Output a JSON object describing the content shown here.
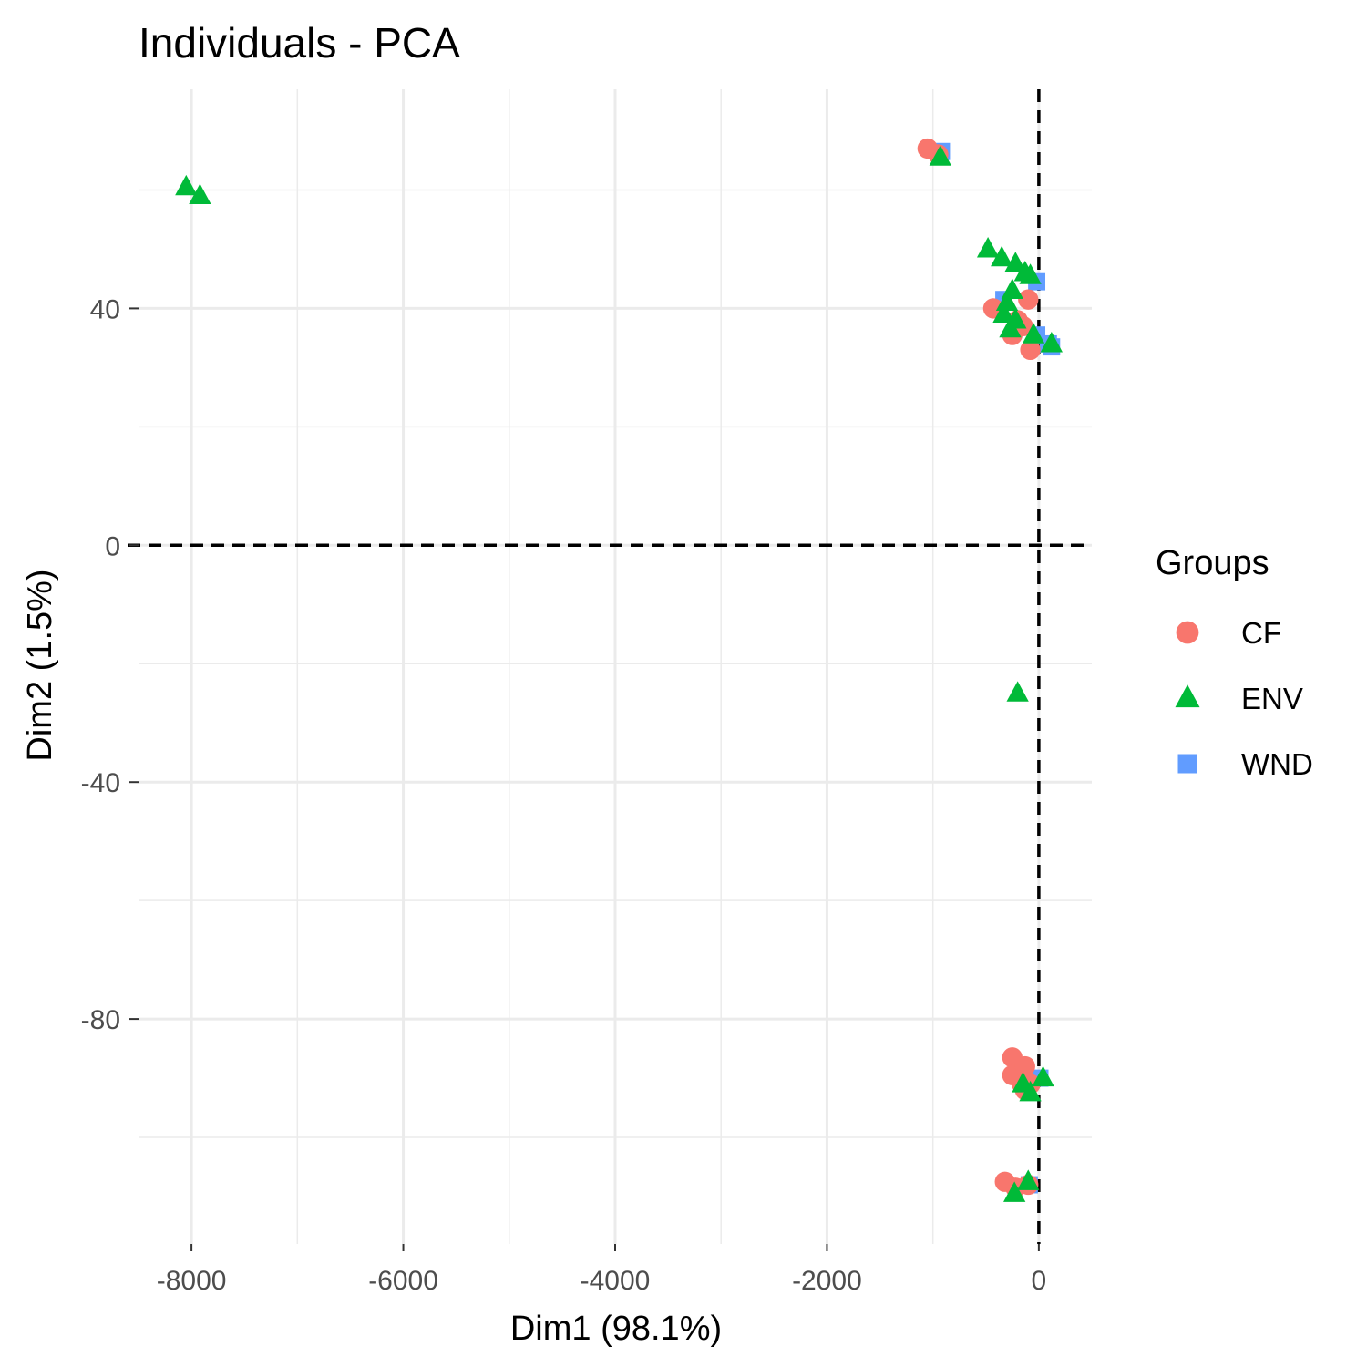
{
  "chart_data": {
    "type": "scatter",
    "title": "Individuals - PCA",
    "xlabel": "Dim1 (98.1%)",
    "ylabel": "Dim2 (1.5%)",
    "xlim": [
      -8500,
      500
    ],
    "ylim": [
      -118,
      77
    ],
    "x_ticks": [
      -8000,
      -6000,
      -4000,
      -2000,
      0
    ],
    "y_ticks": [
      -80,
      -40,
      0,
      40
    ],
    "grid": true,
    "reference_lines": {
      "x": 0,
      "y": 0,
      "style": "dashed"
    },
    "legend": {
      "title": "Groups",
      "position": "right"
    },
    "series": [
      {
        "name": "CF",
        "marker": "circle",
        "color": "#F8766D",
        "points": [
          [
            -1050,
            67
          ],
          [
            -950,
            66
          ],
          [
            -430,
            40
          ],
          [
            -100,
            41.5
          ],
          [
            -150,
            37
          ],
          [
            -80,
            33
          ],
          [
            -200,
            38
          ],
          [
            -250,
            35.5
          ],
          [
            -250,
            -86.5
          ],
          [
            -250,
            -89.5
          ],
          [
            -130,
            -88
          ],
          [
            -80,
            -91
          ],
          [
            -130,
            -92
          ],
          [
            -160,
            -91
          ],
          [
            -320,
            -107.5
          ],
          [
            -220,
            -108.5
          ],
          [
            -100,
            -108
          ]
        ]
      },
      {
        "name": "ENV",
        "marker": "triangle",
        "color": "#00BA38",
        "points": [
          [
            -8050,
            60.5
          ],
          [
            -7920,
            59
          ],
          [
            -930,
            65.5
          ],
          [
            -480,
            50
          ],
          [
            -350,
            48.5
          ],
          [
            -220,
            47.5
          ],
          [
            -130,
            46
          ],
          [
            -80,
            45.5
          ],
          [
            -300,
            41
          ],
          [
            -250,
            43
          ],
          [
            -330,
            39
          ],
          [
            -220,
            38
          ],
          [
            -270,
            36.5
          ],
          [
            -50,
            35.5
          ],
          [
            120,
            34
          ],
          [
            -200,
            -25
          ],
          [
            -150,
            -91
          ],
          [
            -80,
            -92.5
          ],
          [
            40,
            -90
          ],
          [
            -230,
            -109.5
          ],
          [
            -100,
            -107.5
          ]
        ]
      },
      {
        "name": "WND",
        "marker": "square",
        "color": "#619CFF",
        "points": [
          [
            -920,
            66.5
          ],
          [
            -330,
            41.5
          ],
          [
            -20,
            44.5
          ],
          [
            -20,
            35.5
          ],
          [
            90,
            34
          ],
          [
            120,
            33.5
          ],
          [
            -120,
            -91
          ],
          [
            10,
            -90
          ],
          [
            -90,
            -108
          ]
        ]
      }
    ]
  }
}
